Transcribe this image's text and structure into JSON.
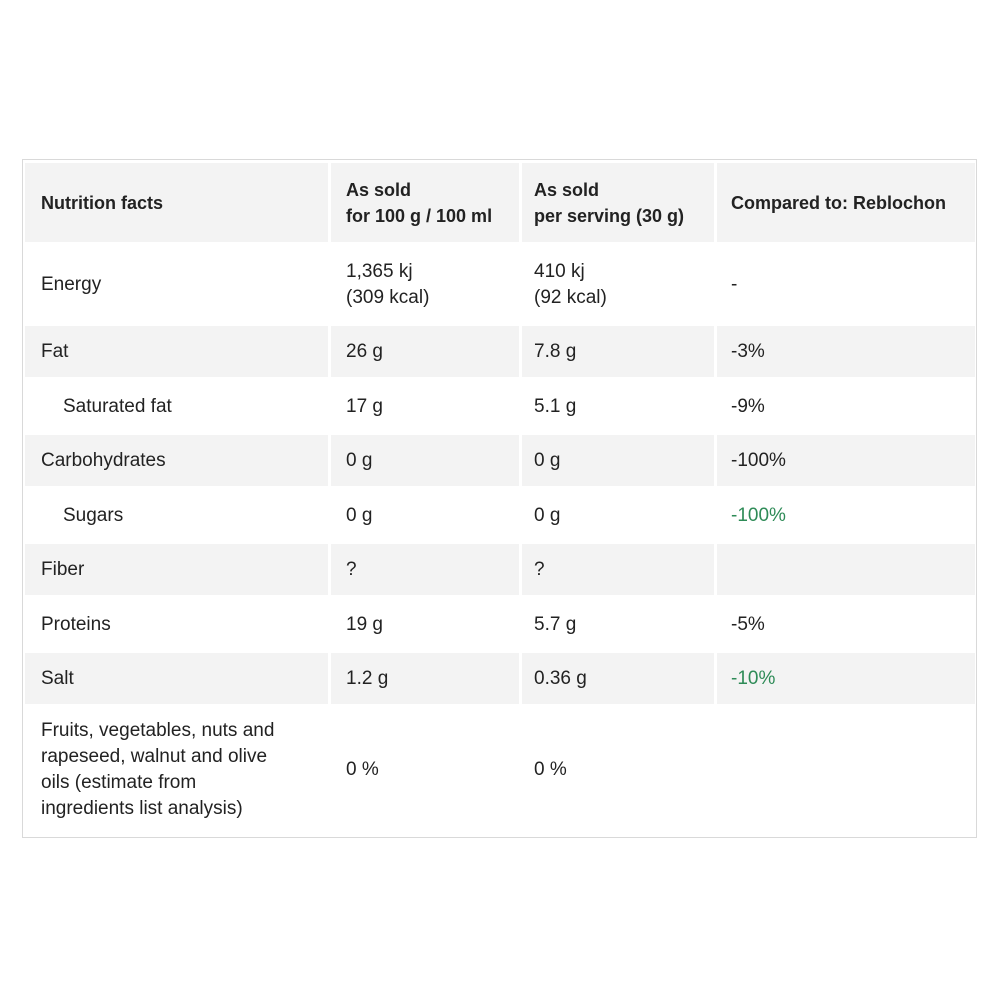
{
  "header": {
    "col1": "Nutrition facts",
    "col2_line1": "As sold",
    "col2_line2": "for 100 g / 100 ml",
    "col3_line1": "As sold",
    "col3_line2": "per serving (30 g)",
    "col4": "Compared to: Reblochon"
  },
  "rows": [
    {
      "name": "Energy",
      "per100_line1": "1,365 kj",
      "per100_line2": "(309 kcal)",
      "serving_line1": "410 kj",
      "serving_line2": "(92 kcal)",
      "compare": "-"
    },
    {
      "name": "Fat",
      "per100": "26 g",
      "serving": "7.8 g",
      "compare": "-3%"
    },
    {
      "name": "Saturated fat",
      "per100": "17 g",
      "serving": "5.1 g",
      "compare": "-9%"
    },
    {
      "name": "Carbohydrates",
      "per100": "0 g",
      "serving": "0 g",
      "compare": "-100%"
    },
    {
      "name": "Sugars",
      "per100": "0 g",
      "serving": "0 g",
      "compare": "-100%"
    },
    {
      "name": "Fiber",
      "per100": "?",
      "serving": "?",
      "compare": ""
    },
    {
      "name": "Proteins",
      "per100": "19 g",
      "serving": "5.7 g",
      "compare": "-5%"
    },
    {
      "name": "Salt",
      "per100": "1.2 g",
      "serving": "0.36 g",
      "compare": "-10%"
    },
    {
      "name_line1": "Fruits, vegetables, nuts and",
      "name_line2": "rapeseed, walnut and olive",
      "name_line3": "oils (estimate from",
      "name_line4": "ingredients list analysis)",
      "per100": "0 %",
      "serving": "0 %",
      "compare": ""
    }
  ],
  "colors": {
    "good": "#2e8b57",
    "shade": "#f3f3f3",
    "border": "#d9d9d9"
  }
}
